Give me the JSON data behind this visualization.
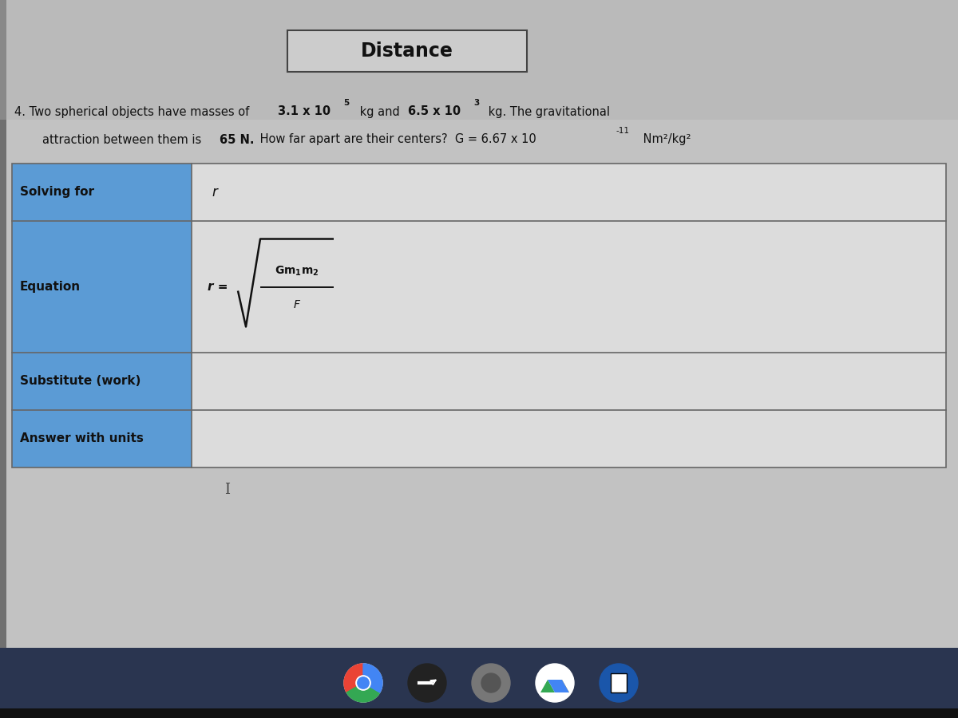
{
  "title": "Distance",
  "row1_label": "Solving for",
  "row1_value": "r",
  "row2_label": "Equation",
  "row3_label": "Substitute (work)",
  "row4_label": "Answer with units",
  "table_left_color": "#5b9bd5",
  "table_border_color": "#666666",
  "table_right_bg": "#dcdcdc",
  "bg_color_main": "#b8b8b8",
  "bg_color_light": "#d0d0d0",
  "title_box_bg": "#cccccc",
  "title_border_color": "#444444",
  "taskbar_color": "#2a3550",
  "bottom_dark_color": "#111111",
  "dark_left_color": "#888888",
  "screen_bg": "#c0c0c0"
}
